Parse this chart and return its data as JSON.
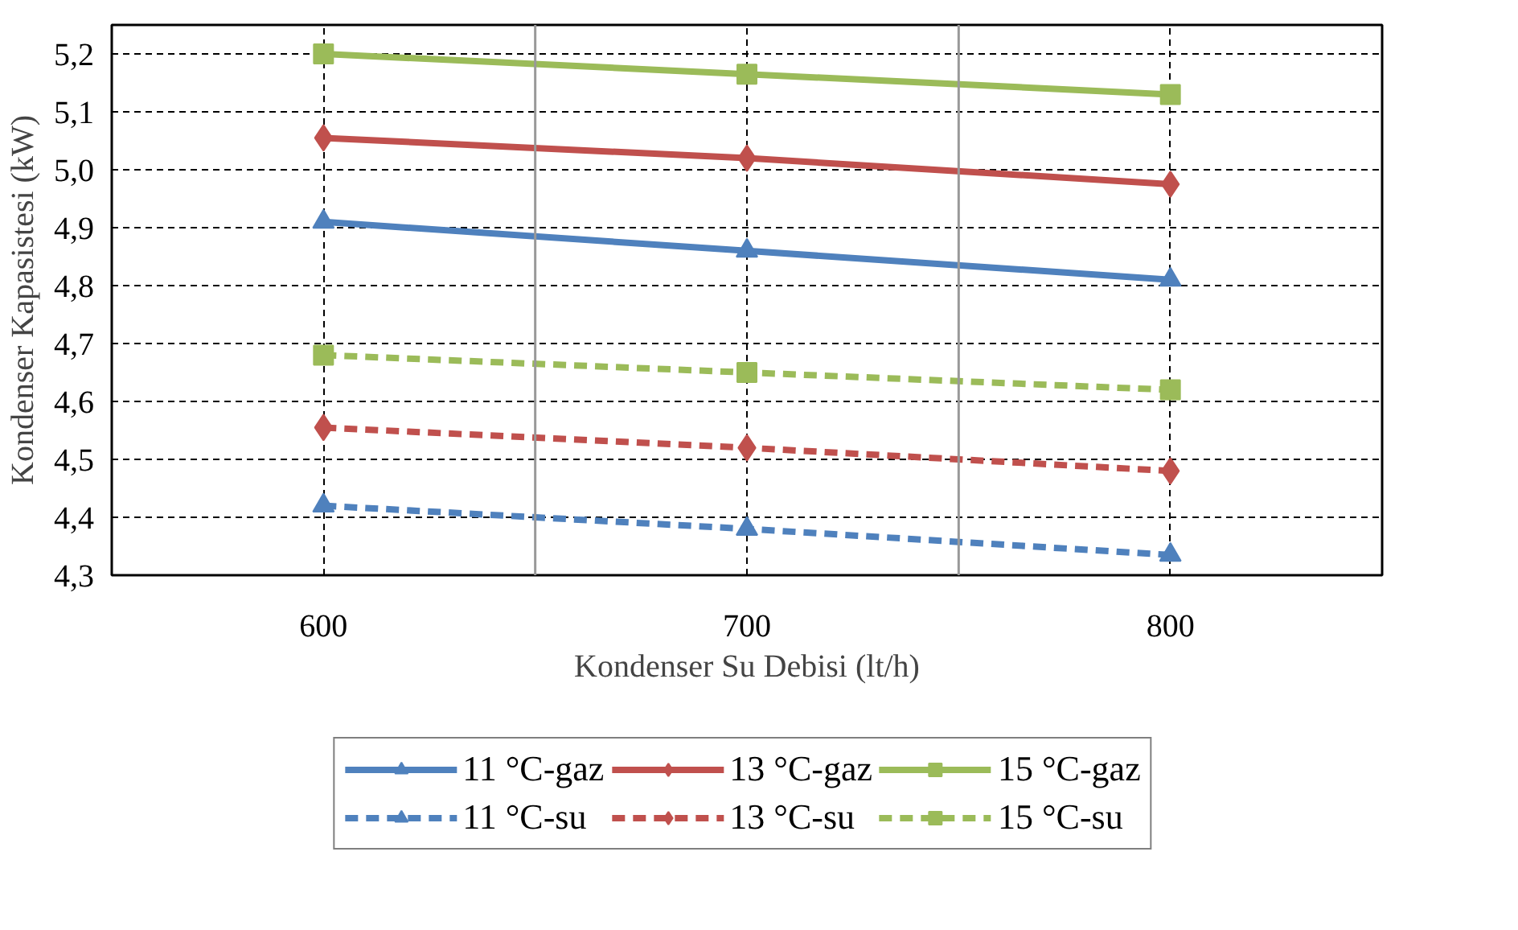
{
  "chart_data": {
    "type": "line",
    "xlabel": "Kondenser Su Debisi (lt/h)",
    "ylabel": "Kondenser Kapasistesi (kW)",
    "categories": [
      "600",
      "700",
      "800"
    ],
    "ylim": [
      4.3,
      5.25
    ],
    "yticks": [
      {
        "value": 4.3,
        "label": "4,3"
      },
      {
        "value": 4.4,
        "label": "4,4"
      },
      {
        "value": 4.5,
        "label": "4,5"
      },
      {
        "value": 4.6,
        "label": "4,6"
      },
      {
        "value": 4.7,
        "label": "4,7"
      },
      {
        "value": 4.8,
        "label": "4,8"
      },
      {
        "value": 4.9,
        "label": "4,9"
      },
      {
        "value": 5.0,
        "label": "5,0"
      },
      {
        "value": 5.1,
        "label": "5,1"
      },
      {
        "value": 5.2,
        "label": "5,2"
      }
    ],
    "grid": true,
    "legend": "bottom",
    "series": [
      {
        "name": "11 °C-gaz",
        "color": "#4f81bd",
        "marker": "triangle",
        "line_style": "solid",
        "values": [
          4.91,
          4.86,
          4.81
        ]
      },
      {
        "name": "13 °C-gaz",
        "color": "#c0504d",
        "marker": "diamond",
        "line_style": "solid",
        "values": [
          5.055,
          5.02,
          4.975
        ]
      },
      {
        "name": "15 °C-gaz",
        "color": "#9bbb59",
        "marker": "square",
        "line_style": "solid",
        "values": [
          5.2,
          5.165,
          5.13
        ]
      },
      {
        "name": "11 °C-su",
        "color": "#4f81bd",
        "marker": "triangle",
        "line_style": "dashed",
        "values": [
          4.42,
          4.38,
          4.335
        ]
      },
      {
        "name": "13 °C-su",
        "color": "#c0504d",
        "marker": "diamond",
        "line_style": "dashed",
        "values": [
          4.555,
          4.52,
          4.48
        ]
      },
      {
        "name": "15 °C-su",
        "color": "#9bbb59",
        "marker": "square",
        "line_style": "dashed",
        "values": [
          4.68,
          4.65,
          4.62
        ]
      }
    ]
  }
}
